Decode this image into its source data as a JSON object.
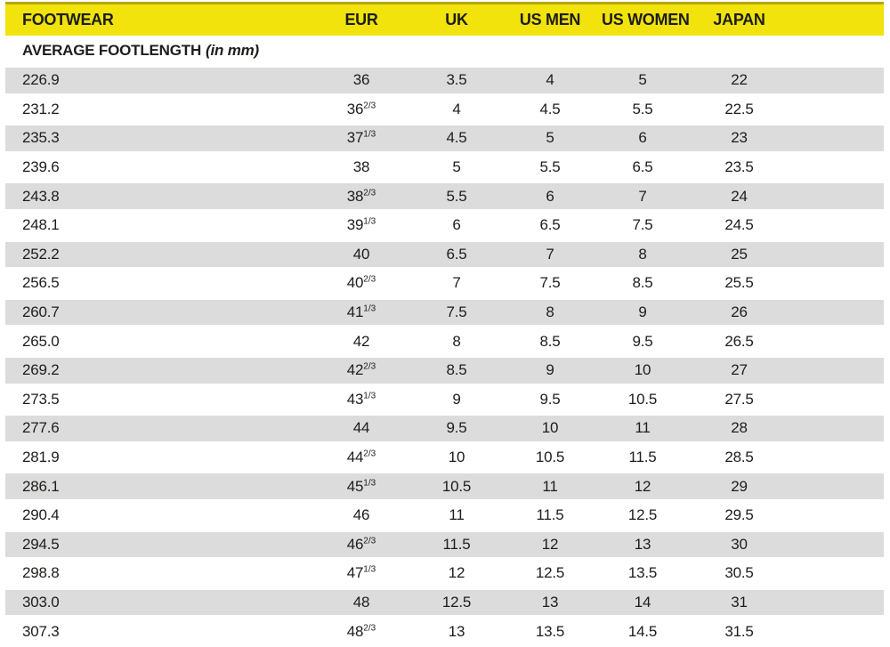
{
  "palette": {
    "header_background": "#f1e30b",
    "header_top_rule": "#b5a705",
    "stripe_color": "#dcdcdc",
    "text_color": "#1d1d1b",
    "page_background": "#ffffff"
  },
  "header": {
    "columns": {
      "footwear": "FOOTWEAR",
      "eur": "EUR",
      "uk": "UK",
      "us_men": "US MEN",
      "us_women": "US WOMEN",
      "japan": "JAPAN"
    }
  },
  "subheader": {
    "label": "AVERAGE FOOTLENGTH",
    "unit_note": "(in mm)"
  },
  "table": {
    "rows": [
      {
        "footlength": "226.9",
        "eur": "36",
        "eur_sup": "",
        "uk": "3.5",
        "us_men": "4",
        "us_women": "5",
        "japan": "22"
      },
      {
        "footlength": "231.2",
        "eur": "36",
        "eur_sup": "2/3",
        "uk": "4",
        "us_men": "4.5",
        "us_women": "5.5",
        "japan": "22.5"
      },
      {
        "footlength": "235.3",
        "eur": "37",
        "eur_sup": "1/3",
        "uk": "4.5",
        "us_men": "5",
        "us_women": "6",
        "japan": "23"
      },
      {
        "footlength": "239.6",
        "eur": "38",
        "eur_sup": "",
        "uk": "5",
        "us_men": "5.5",
        "us_women": "6.5",
        "japan": "23.5"
      },
      {
        "footlength": "243.8",
        "eur": "38",
        "eur_sup": "2/3",
        "uk": "5.5",
        "us_men": "6",
        "us_women": "7",
        "japan": "24"
      },
      {
        "footlength": "248.1",
        "eur": "39",
        "eur_sup": "1/3",
        "uk": "6",
        "us_men": "6.5",
        "us_women": "7.5",
        "japan": "24.5"
      },
      {
        "footlength": "252.2",
        "eur": "40",
        "eur_sup": "",
        "uk": "6.5",
        "us_men": "7",
        "us_women": "8",
        "japan": "25"
      },
      {
        "footlength": "256.5",
        "eur": "40",
        "eur_sup": "2/3",
        "uk": "7",
        "us_men": "7.5",
        "us_women": "8.5",
        "japan": "25.5"
      },
      {
        "footlength": "260.7",
        "eur": "41",
        "eur_sup": "1/3",
        "uk": "7.5",
        "us_men": "8",
        "us_women": "9",
        "japan": "26"
      },
      {
        "footlength": "265.0",
        "eur": "42",
        "eur_sup": "",
        "uk": "8",
        "us_men": "8.5",
        "us_women": "9.5",
        "japan": "26.5"
      },
      {
        "footlength": "269.2",
        "eur": "42",
        "eur_sup": "2/3",
        "uk": "8.5",
        "us_men": "9",
        "us_women": "10",
        "japan": "27"
      },
      {
        "footlength": "273.5",
        "eur": "43",
        "eur_sup": "1/3",
        "uk": "9",
        "us_men": "9.5",
        "us_women": "10.5",
        "japan": "27.5"
      },
      {
        "footlength": "277.6",
        "eur": "44",
        "eur_sup": "",
        "uk": "9.5",
        "us_men": "10",
        "us_women": "11",
        "japan": "28"
      },
      {
        "footlength": "281.9",
        "eur": "44",
        "eur_sup": "2/3",
        "uk": "10",
        "us_men": "10.5",
        "us_women": "11.5",
        "japan": "28.5"
      },
      {
        "footlength": "286.1",
        "eur": "45",
        "eur_sup": "1/3",
        "uk": "10.5",
        "us_men": "11",
        "us_women": "12",
        "japan": "29"
      },
      {
        "footlength": "290.4",
        "eur": "46",
        "eur_sup": "",
        "uk": "11",
        "us_men": "11.5",
        "us_women": "12.5",
        "japan": "29.5"
      },
      {
        "footlength": "294.5",
        "eur": "46",
        "eur_sup": "2/3",
        "uk": "11.5",
        "us_men": "12",
        "us_women": "13",
        "japan": "30"
      },
      {
        "footlength": "298.8",
        "eur": "47",
        "eur_sup": "1/3",
        "uk": "12",
        "us_men": "12.5",
        "us_women": "13.5",
        "japan": "30.5"
      },
      {
        "footlength": "303.0",
        "eur": "48",
        "eur_sup": "",
        "uk": "12.5",
        "us_men": "13",
        "us_women": "14",
        "japan": "31"
      },
      {
        "footlength": "307.3",
        "eur": "48",
        "eur_sup": "2/3",
        "uk": "13",
        "us_men": "13.5",
        "us_women": "14.5",
        "japan": "31.5"
      }
    ]
  }
}
